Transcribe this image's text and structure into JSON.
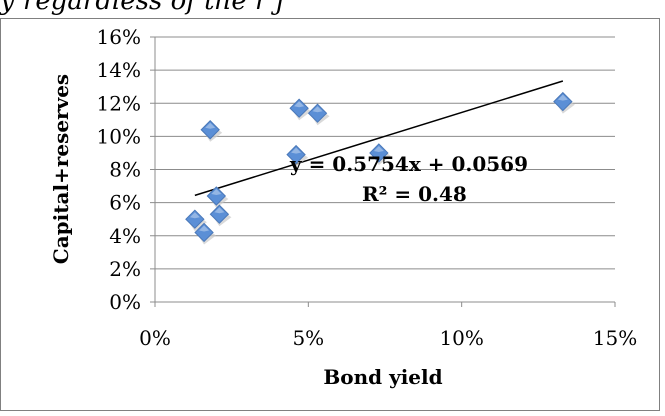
{
  "caption": "y regardless of the r j",
  "chart_data": {
    "type": "scatter",
    "title": "",
    "xlabel": "Bond yield",
    "ylabel": "Capital+reserves",
    "xlim": [
      0,
      0.15
    ],
    "ylim": [
      0,
      0.16
    ],
    "x_ticks": [
      0,
      0.05,
      0.1,
      0.15
    ],
    "x_tick_labels": [
      "0%",
      "5%",
      "10%",
      "15%"
    ],
    "y_ticks": [
      0,
      0.02,
      0.04,
      0.06,
      0.08,
      0.1,
      0.12,
      0.14,
      0.16
    ],
    "y_tick_labels": [
      "0%",
      "2%",
      "4%",
      "6%",
      "8%",
      "10%",
      "12%",
      "14%",
      "16%"
    ],
    "grid": "horizontal",
    "legend": "none",
    "marker_color": "#5B8FD6",
    "trendline_color": "#000000",
    "points": [
      {
        "x": 0.013,
        "y": 0.05
      },
      {
        "x": 0.016,
        "y": 0.042
      },
      {
        "x": 0.018,
        "y": 0.104
      },
      {
        "x": 0.02,
        "y": 0.064
      },
      {
        "x": 0.021,
        "y": 0.053
      },
      {
        "x": 0.046,
        "y": 0.089
      },
      {
        "x": 0.047,
        "y": 0.117
      },
      {
        "x": 0.053,
        "y": 0.114
      },
      {
        "x": 0.073,
        "y": 0.09
      },
      {
        "x": 0.133,
        "y": 0.121
      }
    ],
    "trendline": {
      "slope": 0.5754,
      "intercept": 0.0569,
      "x_range": [
        0.013,
        0.133
      ],
      "equation": "y = 0.5754x + 0.0569",
      "r_squared": "R² = 0.48"
    }
  }
}
